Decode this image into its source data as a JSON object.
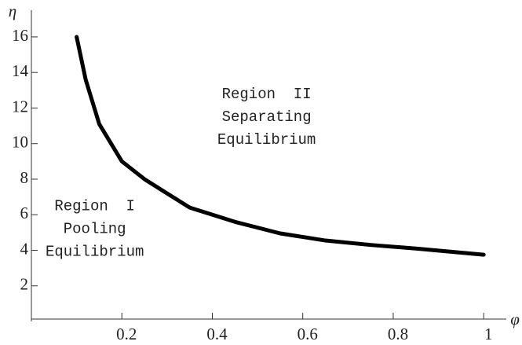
{
  "chart_data": {
    "type": "line",
    "x_label": "φ",
    "y_label": "η",
    "xlim": [
      0,
      1.05
    ],
    "ylim": [
      0,
      17.5
    ],
    "xticks": [
      0.2,
      0.4,
      0.6,
      0.8,
      1
    ],
    "yticks": [
      2,
      4,
      6,
      8,
      10,
      12,
      14,
      16
    ],
    "series": [
      {
        "color": "#000000",
        "x": [
          0.1,
          0.12,
          0.15,
          0.2,
          0.25,
          0.3,
          0.35,
          0.45,
          0.55,
          0.65,
          0.75,
          0.85,
          1
        ],
        "values": [
          16,
          13.6,
          11.1,
          9,
          8,
          7.2,
          6.4,
          5.6,
          4.95,
          4.55,
          4.3,
          4.1,
          3.75
        ]
      }
    ],
    "annotations": [
      {
        "lines": [
          "Region  II",
          "Separating",
          "Equilibrium"
        ],
        "x": 0.52,
        "y": 11.5
      },
      {
        "lines": [
          "Region  I",
          "Pooling",
          "Equilibrium"
        ],
        "x": 0.14,
        "y": 5.2
      }
    ]
  }
}
